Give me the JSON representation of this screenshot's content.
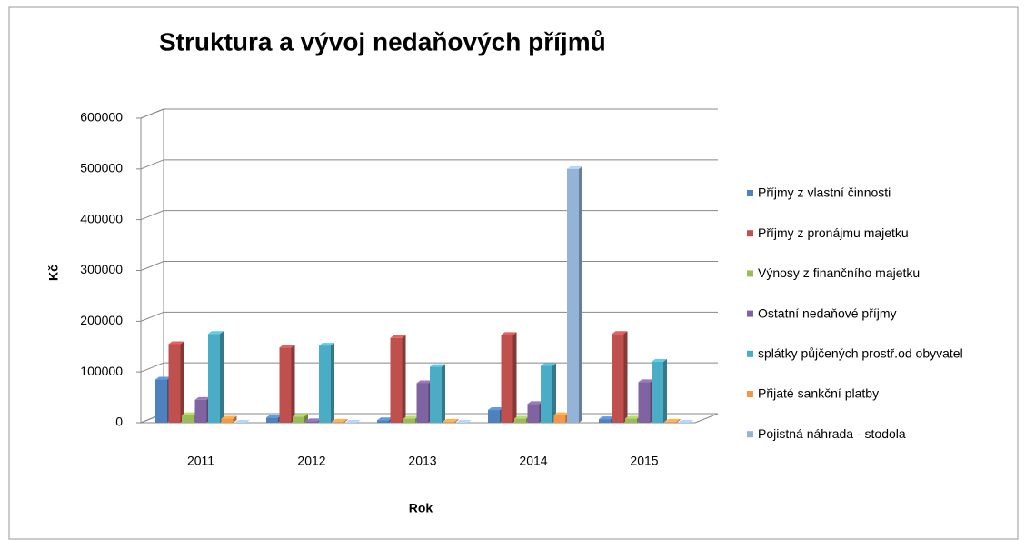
{
  "chart_data": {
    "type": "bar3d",
    "title": "Struktura a vývoj nedaňových příjmů",
    "xlabel": "Rok",
    "ylabel": "Kč",
    "categories": [
      "2011",
      "2012",
      "2013",
      "2014",
      "2015"
    ],
    "ylim": [
      0,
      600000
    ],
    "yticks": [
      0,
      100000,
      200000,
      300000,
      400000,
      500000,
      600000
    ],
    "grid": true,
    "legend": "right",
    "series": [
      {
        "name": "Příjmy z vlastní činnosti",
        "color": "#4f81bd",
        "values": [
          85000,
          10000,
          5000,
          25000,
          7000
        ]
      },
      {
        "name": "Příjmy z pronájmu majetku",
        "color": "#c0504d",
        "values": [
          155000,
          148000,
          167000,
          173000,
          175000
        ]
      },
      {
        "name": "Výnosy z finančního majetku",
        "color": "#9bbb59",
        "values": [
          15000,
          12000,
          8000,
          8000,
          8000
        ]
      },
      {
        "name": "Ostatní nedaňové příjmy",
        "color": "#8064a2",
        "values": [
          45000,
          3000,
          78000,
          37000,
          80000
        ]
      },
      {
        "name": "splátky půjčených prostř.od obyvatel",
        "color": "#4bacc6",
        "values": [
          175000,
          152000,
          110000,
          112000,
          120000
        ]
      },
      {
        "name": "Přijaté sankční platby",
        "color": "#f79646",
        "values": [
          8000,
          2000,
          2000,
          15000,
          2000
        ]
      },
      {
        "name": "Pojistná náhrada - stodola",
        "color": "#95b3d7",
        "values": [
          0,
          0,
          0,
          500000,
          0
        ]
      }
    ]
  }
}
